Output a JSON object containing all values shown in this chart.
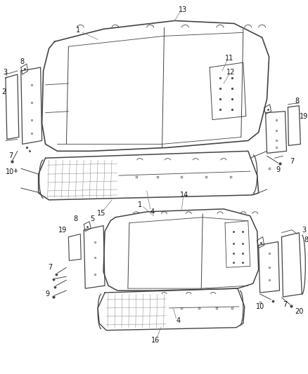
{
  "bg_color": "#ffffff",
  "fig_width": 4.38,
  "fig_height": 5.33,
  "dpi": 100,
  "line_color": "#444444",
  "label_color": "#111111",
  "label_fontsize": 7.0
}
